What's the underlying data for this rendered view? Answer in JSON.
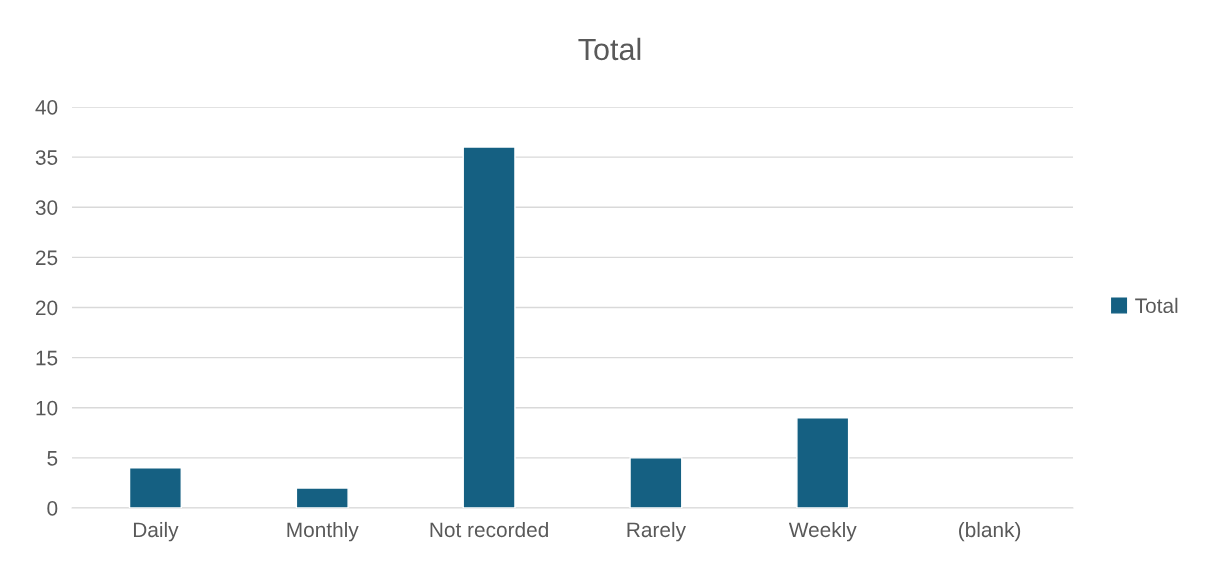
{
  "chart_data": {
    "type": "bar",
    "title": "Total",
    "categories": [
      "Daily",
      "Monthly",
      "Not recorded",
      "Rarely",
      "Weekly",
      "(blank)"
    ],
    "series": [
      {
        "name": "Total",
        "color": "#156082",
        "values": [
          4,
          2,
          36,
          5,
          9,
          null
        ]
      }
    ],
    "ylim": [
      0,
      40
    ],
    "yticks": [
      0,
      5,
      10,
      15,
      20,
      25,
      30,
      35,
      40
    ],
    "grid": "y",
    "legend": "right"
  }
}
